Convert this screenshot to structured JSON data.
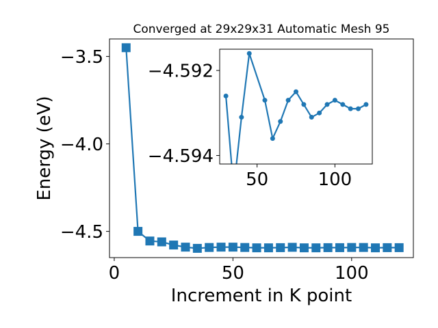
{
  "chart_data": [
    {
      "type": "line",
      "title": "Converged at 29x29x31 Automatic Mesh 95",
      "xlabel": "Increment in K point",
      "ylabel": "Energy (eV)",
      "xlim": [
        -2,
        126
      ],
      "ylim": [
        -4.65,
        -3.4
      ],
      "x_ticks": [
        0,
        50,
        100
      ],
      "y_ticks": [
        -3.5,
        -4.0,
        -4.5
      ],
      "x_tick_labels": [
        "0",
        "50",
        "100"
      ],
      "y_tick_labels": [
        "−3.5",
        "−4.0",
        "−4.5"
      ],
      "marker": "square",
      "color": "#1f77b4",
      "x": [
        5,
        10,
        15,
        20,
        25,
        30,
        35,
        40,
        45,
        50,
        55,
        60,
        65,
        70,
        75,
        80,
        85,
        90,
        95,
        100,
        105,
        110,
        115,
        120
      ],
      "y": [
        -3.45,
        -4.5,
        -4.555,
        -4.56,
        -4.578,
        -4.59,
        -4.597,
        -4.592,
        -4.59,
        -4.59,
        -4.592,
        -4.594,
        -4.594,
        -4.593,
        -4.591,
        -4.594,
        -4.594,
        -4.593,
        -4.593,
        -4.592,
        -4.592,
        -4.594,
        -4.593,
        -4.593
      ]
    },
    {
      "type": "line",
      "title": "",
      "xlabel": "",
      "ylabel": "",
      "xlim": [
        26,
        124
      ],
      "ylim": [
        -4.5942,
        -4.5915
      ],
      "x_ticks": [
        50,
        100
      ],
      "y_ticks": [
        -4.594,
        -4.592
      ],
      "x_tick_labels": [
        "50",
        "100"
      ],
      "y_tick_labels": [
        "−4.594",
        "−4.592"
      ],
      "marker": "circle",
      "color": "#1f77b4",
      "x": [
        30,
        35,
        40,
        45,
        55,
        60,
        65,
        70,
        75,
        80,
        85,
        90,
        95,
        100,
        105,
        110,
        115,
        120
      ],
      "y": [
        -4.5926,
        -4.5948,
        -4.5931,
        -4.5916,
        -4.5927,
        -4.5936,
        -4.5932,
        -4.5927,
        -4.5925,
        -4.5928,
        -4.5931,
        -4.593,
        -4.5928,
        -4.5927,
        -4.5928,
        -4.5929,
        -4.5929,
        -4.5928
      ]
    }
  ]
}
